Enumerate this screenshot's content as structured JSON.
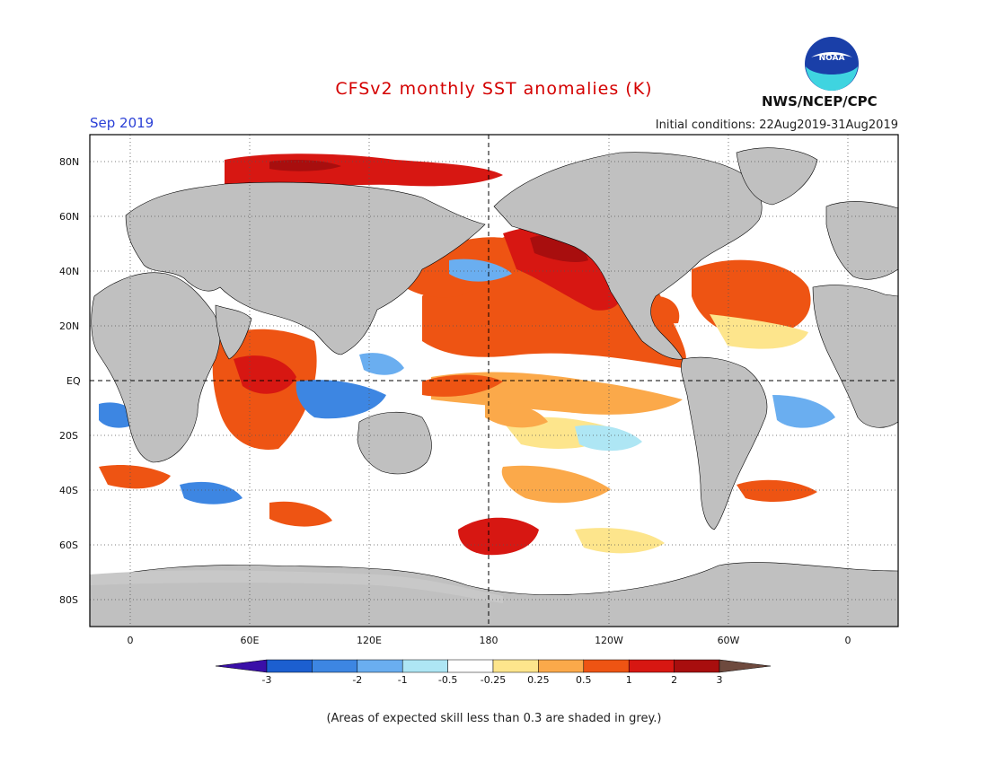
{
  "header": {
    "title": "CFSv2 monthly SST anomalies (K)",
    "month": "Sep 2019",
    "initial_conditions": "Initial conditions: 22Aug2019-31Aug2019",
    "agency": "NWS/NCEP/CPC",
    "logo_text": "NOAA"
  },
  "axes": {
    "lat_labels": [
      "80N",
      "60N",
      "40N",
      "20N",
      "EQ",
      "20S",
      "40S",
      "60S",
      "80S"
    ],
    "lon_labels": [
      "0",
      "60E",
      "120E",
      "180",
      "120W",
      "60W",
      "0"
    ]
  },
  "colorbar": {
    "labels": [
      "-3",
      "-2",
      "-1",
      "-0.5",
      "-0.25",
      "0.25",
      "0.5",
      "1",
      "2",
      "3"
    ],
    "colors": {
      "below_min": "#3a0fa8",
      "bins": [
        "#1c5fd0",
        "#3d86e2",
        "#6aaef0",
        "#aee6f4",
        "#ffffff",
        "#fde58c",
        "#fba94a",
        "#ee5413",
        "#d71712",
        "#a80e0e"
      ],
      "above_max": "#6e4a3e"
    }
  },
  "legend_colors": {
    "land": "#c0c0c0",
    "low_skill": "#c8c8c8"
  },
  "footer": {
    "note": "(Areas of expected skill less than 0.3 are shaded in grey.)"
  }
}
